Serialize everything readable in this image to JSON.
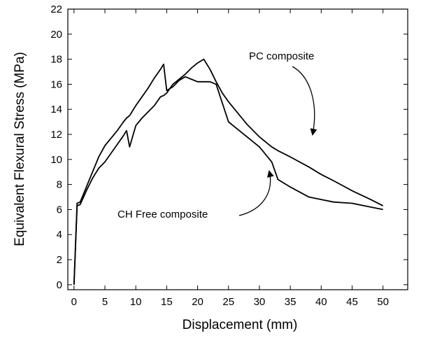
{
  "chart_data": {
    "type": "line",
    "x_label": "Displacement (mm)",
    "y_label": "Equivalent Flexural Stress (MPa)",
    "x": [
      0,
      0.5,
      1,
      2,
      3,
      4,
      5,
      6,
      7,
      8,
      8.5,
      9,
      10,
      11,
      12,
      13,
      14,
      14.5,
      15,
      16,
      17,
      18,
      19,
      20,
      21,
      22,
      23,
      24,
      25,
      26,
      27,
      28,
      30,
      32,
      33,
      35,
      38,
      40,
      42,
      45,
      48,
      50
    ],
    "series": [
      {
        "name": "CH Free composite",
        "color": "#000000",
        "values": [
          0,
          6.5,
          6.6,
          7.8,
          9,
          10.2,
          11.1,
          11.7,
          12.3,
          13,
          13.3,
          13.5,
          14.3,
          15,
          15.7,
          16.5,
          17.2,
          17.6,
          15.5,
          15.8,
          16.3,
          16.6,
          16.4,
          16.2,
          16.2,
          16.2,
          16,
          14.5,
          13,
          12.6,
          12.2,
          11.8,
          11,
          9.8,
          8.4,
          7.8,
          7,
          6.8,
          6.6,
          6.5,
          6.2,
          6
        ]
      },
      {
        "name": "PC composite",
        "color": "#000000",
        "values": [
          0,
          6.3,
          6.4,
          7.5,
          8.5,
          9.3,
          9.8,
          10.5,
          11.2,
          11.9,
          12.3,
          11,
          12.7,
          13.3,
          13.8,
          14.3,
          15,
          15.1,
          15.3,
          16,
          16.4,
          16.8,
          17.3,
          17.7,
          18,
          17.2,
          16.2,
          15.3,
          14.6,
          14,
          13.4,
          12.8,
          11.8,
          11,
          10.7,
          10.2,
          9.4,
          8.8,
          8.3,
          7.5,
          6.8,
          6.3
        ]
      }
    ],
    "xlim": [
      -1,
      54
    ],
    "ylim": [
      -0.4,
      22
    ],
    "xticks": [
      0,
      5,
      10,
      15,
      20,
      25,
      30,
      35,
      40,
      45,
      50
    ],
    "yticks": [
      0,
      2,
      4,
      6,
      8,
      10,
      12,
      14,
      16,
      18,
      20,
      22
    ],
    "grid": false
  }
}
